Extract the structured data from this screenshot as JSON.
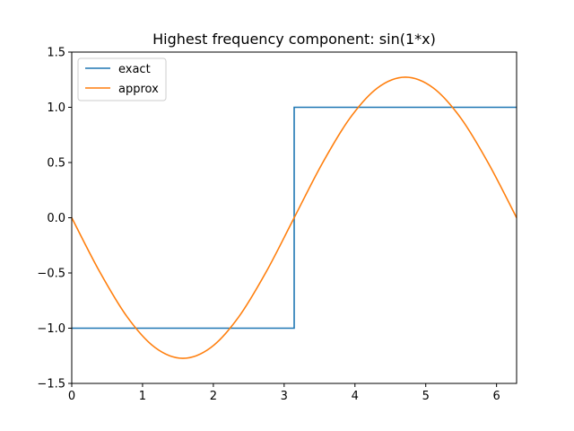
{
  "chart_data": {
    "type": "line",
    "title": "Highest frequency component: sin(1*x)",
    "xlabel": "",
    "ylabel": "",
    "xlim": [
      0,
      6.283185307179586
    ],
    "ylim": [
      -1.5,
      1.5
    ],
    "x_ticks": [
      0,
      1,
      2,
      3,
      4,
      5,
      6
    ],
    "x_tick_labels": [
      "0",
      "1",
      "2",
      "3",
      "4",
      "5",
      "6"
    ],
    "y_ticks": [
      -1.5,
      -1.0,
      -0.5,
      0.0,
      0.5,
      1.0,
      1.5
    ],
    "y_tick_labels": [
      "−1.5",
      "−1.0",
      "−0.5",
      "0.0",
      "0.5",
      "1.0",
      "1.5"
    ],
    "grid": false,
    "legend_position": "top-left",
    "series": [
      {
        "name": "exact",
        "color": "#1f77b4",
        "x": [
          0,
          3.14159,
          3.14159,
          6.28319
        ],
        "y": [
          -1,
          -1,
          1,
          1
        ]
      },
      {
        "name": "approx",
        "color": "#ff7f0e",
        "x": [
          0,
          0.3927,
          0.7854,
          1.1781,
          1.5708,
          1.9635,
          2.3562,
          2.7489,
          3.1416,
          3.5343,
          3.927,
          4.3197,
          4.7124,
          5.1051,
          5.4978,
          5.8905,
          6.2832
        ],
        "y": [
          0,
          -0.487,
          -0.9,
          -1.176,
          -1.273,
          -1.176,
          -0.9,
          -0.487,
          0,
          0.487,
          0.9,
          1.176,
          1.273,
          1.176,
          0.9,
          0.487,
          0
        ]
      }
    ]
  }
}
